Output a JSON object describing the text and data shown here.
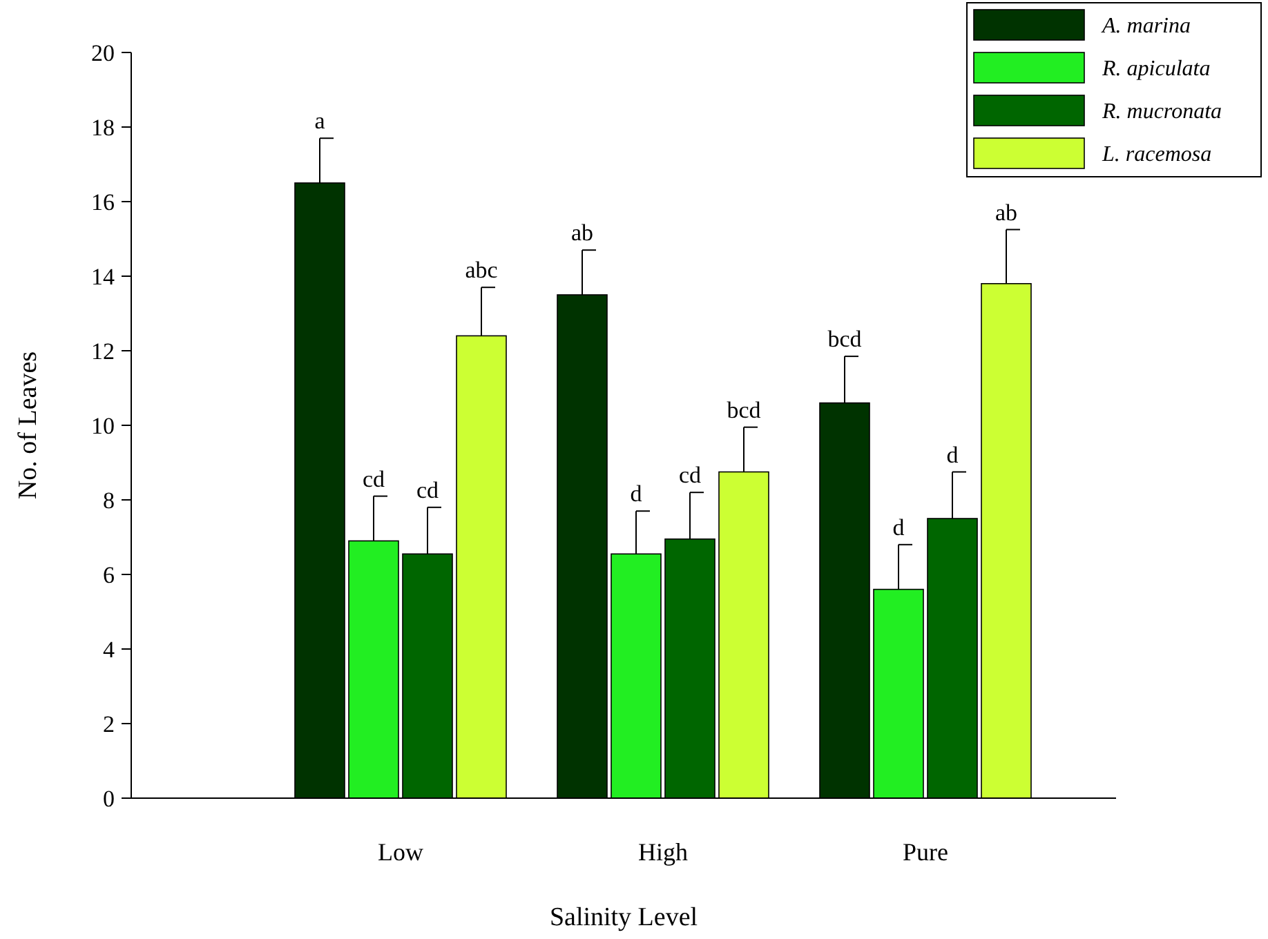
{
  "chart_data": {
    "type": "bar",
    "xlabel": "Salinity Level",
    "ylabel": "No. of Leaves",
    "categories": [
      "Low",
      "High",
      "Pure"
    ],
    "series": [
      {
        "name": "A. marina",
        "color": "#003300",
        "values": [
          16.5,
          13.5,
          10.6
        ],
        "errors": [
          1.2,
          1.2,
          1.25
        ]
      },
      {
        "name": "R. apiculata",
        "color": "#22ee22",
        "values": [
          6.9,
          6.55,
          5.6
        ],
        "errors": [
          1.2,
          1.15,
          1.2
        ]
      },
      {
        "name": "R. mucronata",
        "color": "#006600",
        "values": [
          6.55,
          6.95,
          7.5
        ],
        "errors": [
          1.25,
          1.25,
          1.25
        ]
      },
      {
        "name": "L. racemosa",
        "color": "#ccff33",
        "values": [
          12.4,
          8.75,
          13.8
        ],
        "errors": [
          1.3,
          1.2,
          1.45
        ]
      }
    ],
    "ylim": [
      0,
      20
    ],
    "yticks": [
      0,
      2,
      4,
      6,
      8,
      10,
      12,
      14,
      16,
      18,
      20
    ],
    "legend": "top right",
    "grid": false,
    "annotations": [
      "a",
      "cd",
      "cd",
      "abc",
      "ab",
      "d",
      "cd",
      "bcd",
      "bcd",
      "d",
      "d",
      "ab"
    ]
  }
}
